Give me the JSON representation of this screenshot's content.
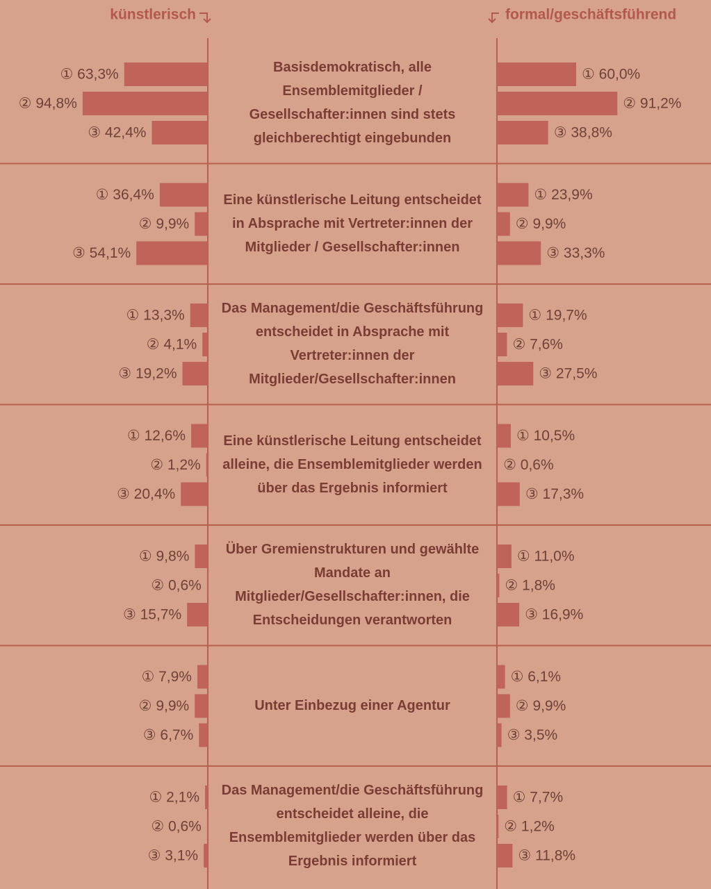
{
  "chart_data": {
    "type": "butterfly",
    "categories": [
      "Basisdemokratisch, alle Ensemblemitglieder / Gesellschafter:innen sind stets gleichberechtigt eingebunden",
      "Eine künstlerische Leitung entscheidet in Absprache mit Vertreter:innen der Mitglieder / Gesellschafter:innen",
      "Das Management/die Geschäftsführung entscheidet in Absprache mit Vertreter:innen der Mitglieder/Gesellschafter:innen",
      "Eine künstlerische Leitung entscheidet alleine, die Ensemblemitglieder werden über das Ergebnis informiert",
      "Über Gremienstrukturen und gewählte Mandate an Mitglieder/Gesellschafter:innen, die Entscheidungen verantworten",
      "Unter Einbezug einer Agentur",
      "Das Management/die Geschäftsführung entscheidet alleine, die Ensemblemitglieder werden über das Ergebnis informiert"
    ],
    "series": [
      {
        "name": "künstlerisch",
        "color": "#c0645a",
        "values": [
          [
            63.3,
            94.8,
            42.4
          ],
          [
            36.4,
            9.9,
            54.1
          ],
          [
            13.3,
            4.1,
            19.2
          ],
          [
            12.6,
            1.2,
            20.4
          ],
          [
            9.8,
            0.6,
            15.7
          ],
          [
            7.9,
            9.9,
            6.7
          ],
          [
            2.1,
            0.6,
            3.1
          ]
        ],
        "value_labels": [
          [
            "① 63,3%",
            "② 94,8%",
            "③ 42,4%"
          ],
          [
            "① 36,4%",
            "② 9,9%",
            "③ 54,1%"
          ],
          [
            "① 13,3%",
            "② 4,1%",
            "③ 19,2%"
          ],
          [
            "① 12,6%",
            "② 1,2%",
            "③ 20,4%"
          ],
          [
            "① 9,8%",
            "② 0,6%",
            "③ 15,7%"
          ],
          [
            "① 7,9%",
            "② 9,9%",
            "③ 6,7%"
          ],
          [
            "① 2,1%",
            "② 0,6%",
            "③ 3,1%"
          ]
        ]
      },
      {
        "name": "formal/geschäftsführend",
        "color": "#c0645a",
        "values": [
          [
            60.0,
            91.2,
            38.8
          ],
          [
            23.9,
            9.9,
            33.3
          ],
          [
            19.7,
            7.6,
            27.5
          ],
          [
            10.5,
            0.6,
            17.3
          ],
          [
            11.0,
            1.8,
            16.9
          ],
          [
            6.1,
            9.9,
            3.5
          ],
          [
            7.7,
            1.2,
            11.8
          ]
        ],
        "value_labels": [
          [
            "① 60,0%",
            "② 91,2%",
            "③ 38,8%"
          ],
          [
            "① 23,9%",
            "② 9,9%",
            "③ 33,3%"
          ],
          [
            "① 19,7%",
            "② 7,6%",
            "③ 27,5%"
          ],
          [
            "① 10,5%",
            "② 0,6%",
            "③ 17,3%"
          ],
          [
            "① 11,0%",
            "② 1,8%",
            "③ 16,9%"
          ],
          [
            "① 6,1%",
            "② 9,9%",
            "③ 3,5%"
          ],
          [
            "① 7,7%",
            "② 1,2%",
            "③ 11,8%"
          ]
        ]
      }
    ]
  }
}
